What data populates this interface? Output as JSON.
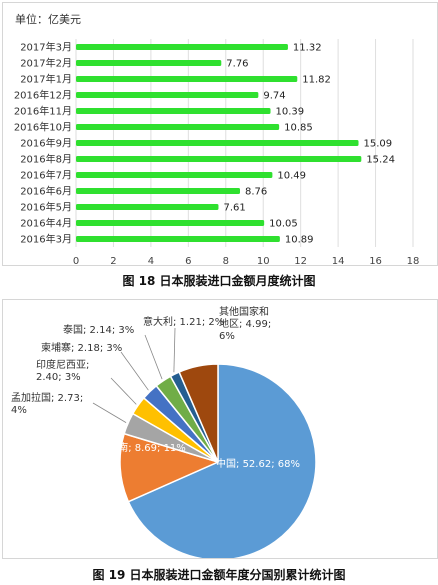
{
  "chart_data": [
    {
      "type": "bar",
      "orientation": "horizontal",
      "unit_label": "单位：亿美元",
      "categories": [
        "2017年3月",
        "2017年2月",
        "2017年1月",
        "2016年12月",
        "2016年11月",
        "2016年10月",
        "2016年9月",
        "2016年8月",
        "2016年7月",
        "2016年6月",
        "2016年5月",
        "2016年4月",
        "2016年3月"
      ],
      "values": [
        11.32,
        7.76,
        11.82,
        9.74,
        10.39,
        10.85,
        15.09,
        15.24,
        10.49,
        8.76,
        7.61,
        10.05,
        10.89
      ],
      "value_labels": [
        "11.32",
        "7.76",
        "11.82",
        "9.74",
        "10.39",
        "10.85",
        "15.09",
        "15.24",
        "10.49",
        "8.76",
        "7.61",
        "10.05",
        "10.89"
      ],
      "xlim": [
        0,
        18
      ],
      "x_ticks": [
        "0",
        "2",
        "4",
        "6",
        "8",
        "10",
        "12",
        "14",
        "16",
        "18"
      ],
      "grid": true,
      "bar_color": "#2fe02f"
    },
    {
      "type": "pie",
      "slices": [
        {
          "label": "中国",
          "value": 52.62,
          "percent": 68,
          "text": "中国; 52.62; 68%",
          "color": "#5b9bd5"
        },
        {
          "label": "越南",
          "value": 8.69,
          "percent": 11,
          "text": "越南; 8.69; 11%",
          "color": "#ed7d31"
        },
        {
          "label": "孟加拉国",
          "value": 2.73,
          "percent": 4,
          "text_lines": [
            "孟加拉国; 2.73;",
            "4%"
          ],
          "color": "#a5a5a5"
        },
        {
          "label": "印度尼西亚",
          "value": 2.4,
          "percent": 3,
          "text_lines": [
            "印度尼西亚;",
            "2.40; 3%"
          ],
          "color": "#ffc000"
        },
        {
          "label": "柬埔寨",
          "value": 2.18,
          "percent": 3,
          "text": "柬埔寨; 2.18; 3%",
          "color": "#4472c4"
        },
        {
          "label": "泰国",
          "value": 2.14,
          "percent": 3,
          "text": "泰国; 2.14; 3%",
          "color": "#70ad47"
        },
        {
          "label": "意大利",
          "value": 1.21,
          "percent": 2,
          "text": "意大利; 1.21; 2%",
          "color": "#255e91"
        },
        {
          "label": "其他国家和地区",
          "value": 4.99,
          "percent": 6,
          "text_lines": [
            "其他国家和",
            "地区; 4.99;",
            "6%"
          ],
          "color": "#9e480e"
        }
      ]
    }
  ],
  "captions": {
    "fig18": "图 18  日本服装进口金额月度统计图",
    "fig19": "图 19  日本服装进口金额年度分国别累计统计图"
  }
}
